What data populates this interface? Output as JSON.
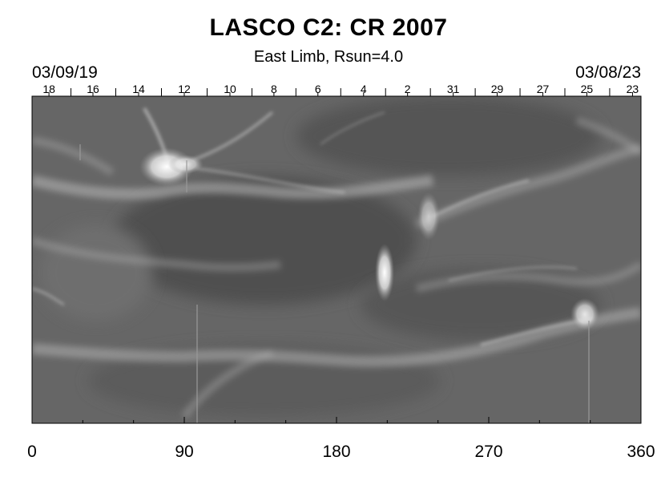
{
  "chart_data": {
    "type": "heatmap",
    "title": "LASCO C2: CR 2007",
    "subtitle": "East Limb, Rsun=4.0",
    "date_start": "03/09/19",
    "date_end": "03/08/23",
    "xlim": [
      0,
      360
    ],
    "x_ticks": [
      0,
      90,
      180,
      270,
      360
    ],
    "day_ticks": [
      {
        "label": "18",
        "value": 10
      },
      {
        "label": "16",
        "value": 36
      },
      {
        "label": "14",
        "value": 63
      },
      {
        "label": "12",
        "value": 90
      },
      {
        "label": "10",
        "value": 117
      },
      {
        "label": "8",
        "value": 143
      },
      {
        "label": "6",
        "value": 169
      },
      {
        "label": "4",
        "value": 196
      },
      {
        "label": "2",
        "value": 222
      },
      {
        "label": "31",
        "value": 249
      },
      {
        "label": "29",
        "value": 275
      },
      {
        "label": "27",
        "value": 302
      },
      {
        "label": "25",
        "value": 328
      },
      {
        "label": "23",
        "value": 355
      }
    ],
    "colormap": "grayscale"
  }
}
